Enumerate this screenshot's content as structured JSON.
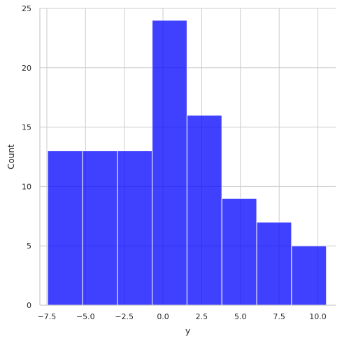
{
  "chart_data": {
    "type": "bar",
    "subtype": "histogram",
    "title": "",
    "xlabel": "y",
    "ylabel": "Count",
    "xlim": [
      -7.95,
      11.15
    ],
    "ylim": [
      0,
      25
    ],
    "grid": true,
    "bar_color": "#0000ff",
    "bar_opacity": 0.75,
    "bin_edges": [
      -7.45,
      -5.2,
      -2.95,
      -0.7,
      1.55,
      3.8,
      6.05,
      8.3,
      10.55
    ],
    "values": [
      13,
      13,
      13,
      24,
      16,
      9,
      7,
      5
    ],
    "xticks": [
      -7.5,
      -5.0,
      -2.5,
      0.0,
      2.5,
      5.0,
      7.5,
      10.0
    ],
    "xtick_labels": [
      "−7.5",
      "−5.0",
      "−2.5",
      "0.0",
      "2.5",
      "5.0",
      "7.5",
      "10.0"
    ],
    "yticks": [
      0,
      5,
      10,
      15,
      20,
      25
    ],
    "ytick_labels": [
      "0",
      "5",
      "10",
      "15",
      "20",
      "25"
    ]
  }
}
